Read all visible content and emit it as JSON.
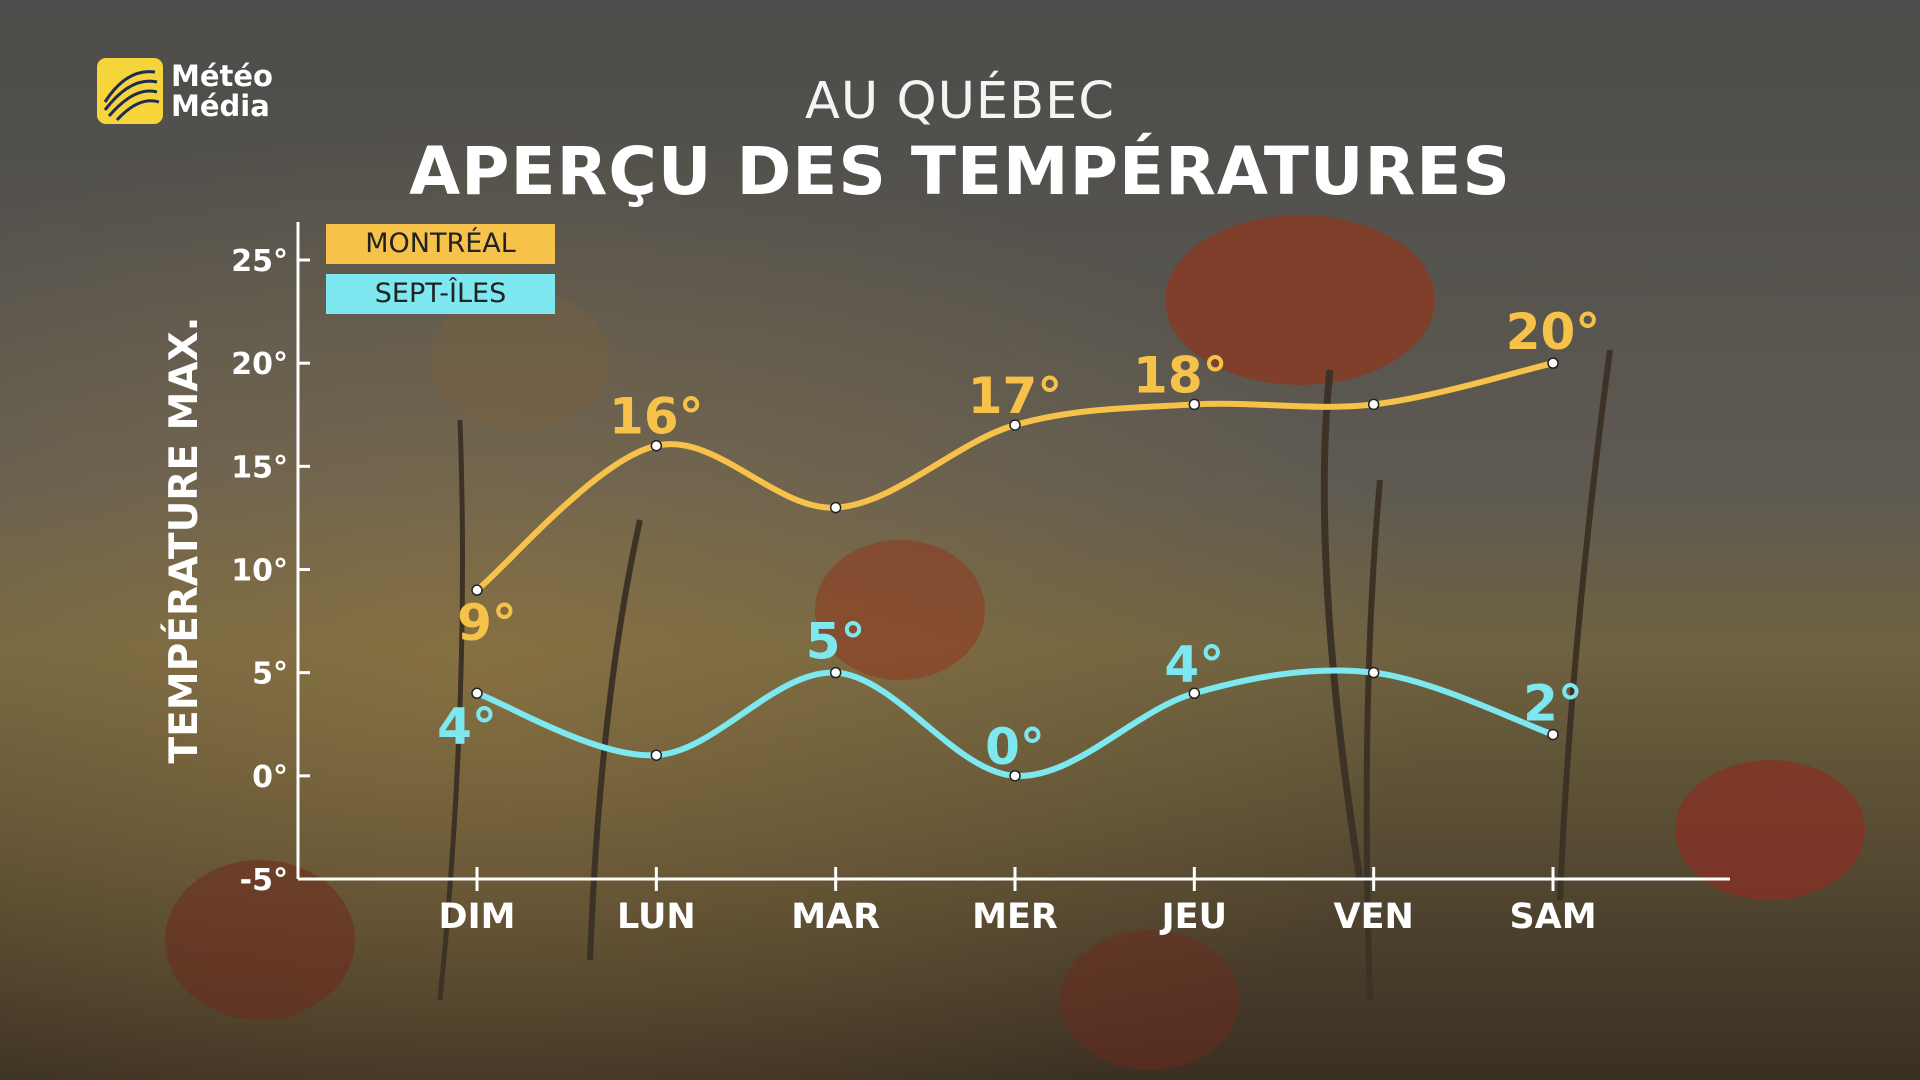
{
  "brand": {
    "line1": "Météo",
    "line2": "Média"
  },
  "header": {
    "subtitle": "AU QUÉBEC",
    "title": "APERÇU DES TEMPÉRATURES"
  },
  "colors": {
    "montreal": "#f6c24a",
    "septiles": "#7ee8f0",
    "axis": "#ffffff"
  },
  "chart_data": {
    "type": "line",
    "title": "APERÇU DES TEMPÉRATURES",
    "subtitle": "AU QUÉBEC",
    "ylabel": "TEMPÉRATURE MAX.",
    "xlabel": "",
    "categories": [
      "DIM",
      "LUN",
      "MAR",
      "MER",
      "JEU",
      "VEN",
      "SAM"
    ],
    "ylim": [
      -5,
      25
    ],
    "yticks": [
      -5,
      0,
      5,
      10,
      15,
      20,
      25
    ],
    "ytick_labels": [
      "-5°",
      "0°",
      "5°",
      "10°",
      "15°",
      "20°",
      "25°"
    ],
    "grid": false,
    "legend_position": "top-left",
    "series": [
      {
        "name": "MONTRÉAL",
        "values": [
          9,
          16,
          13,
          17,
          18,
          18,
          20
        ],
        "labels": [
          "9°",
          "16°",
          "",
          "17°",
          "18°",
          "",
          "20°"
        ]
      },
      {
        "name": "SEPT-ÎLES",
        "values": [
          4,
          1,
          5,
          0,
          4,
          5,
          2
        ],
        "labels": [
          "4°",
          "",
          "5°",
          "0°",
          "4°",
          "",
          "2°"
        ]
      }
    ]
  }
}
